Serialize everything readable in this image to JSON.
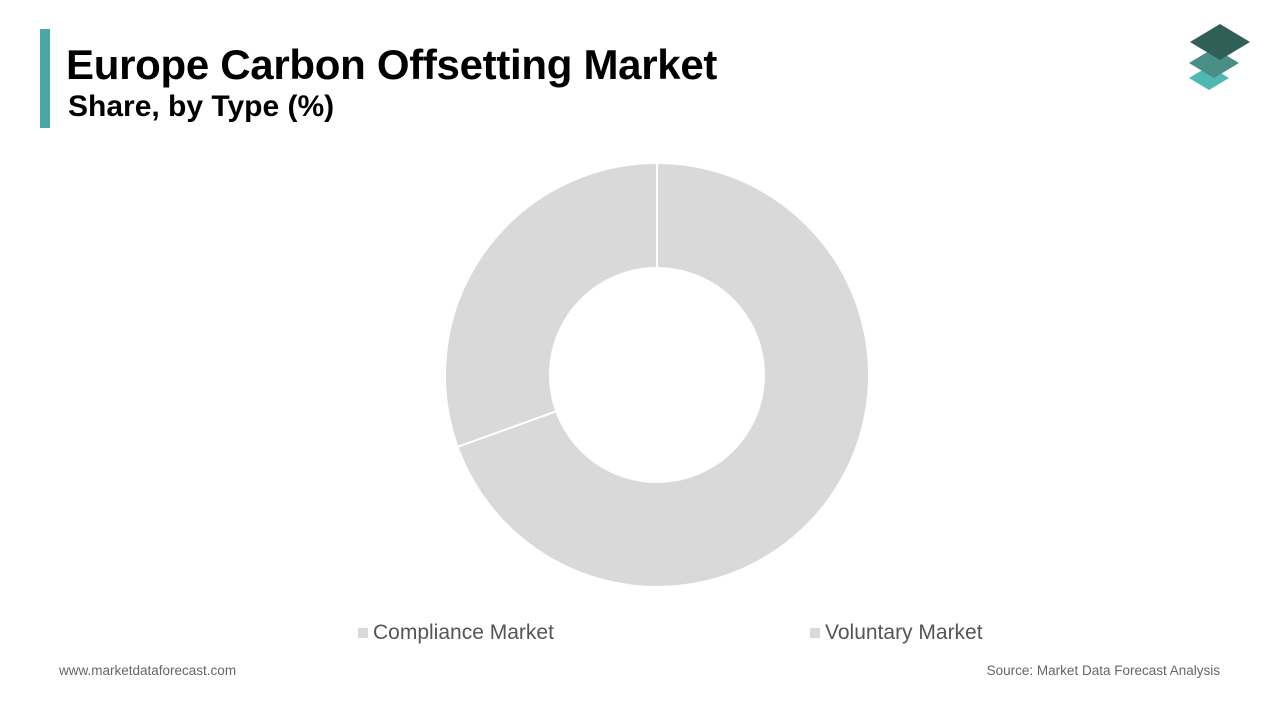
{
  "header": {
    "title": "Europe Carbon Offsetting Market",
    "subtitle": "Share, by Type (%)"
  },
  "logo": {
    "icon": "stacked-layers-logo-icon"
  },
  "colors": {
    "accent": "#4aa7a4",
    "slice_fill": "#d9d9d9",
    "slice_border": "#ffffff",
    "legend_swatch": "#d9d9d9",
    "logo_dark": "#2f5f57",
    "logo_mid": "#4a8f87",
    "logo_light": "#4fb8b3"
  },
  "chart_data": {
    "type": "pie",
    "donut": true,
    "categories": [
      "Voluntary Market",
      "Compliance Market"
    ],
    "values": [
      69.5,
      30.5
    ],
    "legend": [
      "Compliance Market",
      "Voluntary Market"
    ],
    "legend_position": "bottom",
    "data_labels": false
  },
  "footer": {
    "website": "www.marketdataforecast.com",
    "source": "Source: Market Data Forecast Analysis"
  }
}
